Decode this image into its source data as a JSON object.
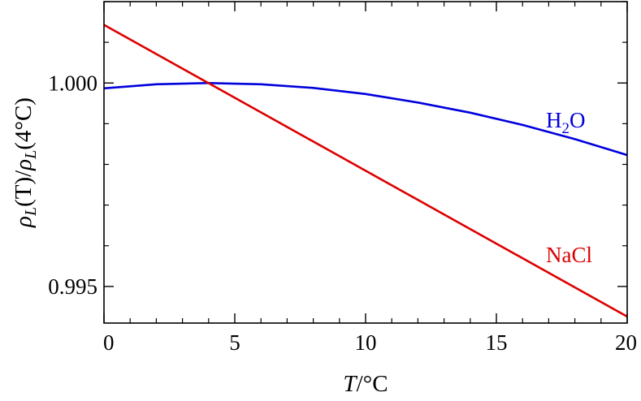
{
  "chart_data": {
    "type": "line",
    "title": "",
    "xlabel": {
      "var": "T",
      "unit": "/°C"
    },
    "ylabel": {
      "rho": "ρ",
      "sub": "L",
      "num_arg": "(T)",
      "slash": "/",
      "rho2": "ρ",
      "sub2": "L",
      "den_arg": "(4°C)"
    },
    "xlim": [
      0,
      20
    ],
    "ylim": [
      0.9941,
      1.002
    ],
    "x_ticks": [
      0,
      5,
      10,
      15,
      20
    ],
    "x_tick_labels": [
      "0",
      "5",
      "10",
      "15",
      "20"
    ],
    "x_minor_step": 1,
    "y_ticks": [
      0.995,
      1.0
    ],
    "y_tick_labels": [
      "0.995",
      "1.000"
    ],
    "y_minor_step": 0.001,
    "grid": false,
    "series": [
      {
        "name": "H₂O",
        "label_parts": {
          "a": "H",
          "sub": "2",
          "b": "O"
        },
        "color": "#0000dd",
        "x": [
          0,
          2,
          4,
          6,
          8,
          10,
          12,
          14,
          16,
          18,
          20
        ],
        "y": [
          0.99987,
          0.99997,
          1.0,
          0.99997,
          0.99988,
          0.99973,
          0.99952,
          0.99927,
          0.99897,
          0.99862,
          0.99823
        ]
      },
      {
        "name": "NaCl",
        "label_parts": {
          "a": "NaCl"
        },
        "color": "#dd0000",
        "x": [
          0,
          20
        ],
        "y": [
          1.00143,
          0.99426
        ]
      }
    ]
  }
}
